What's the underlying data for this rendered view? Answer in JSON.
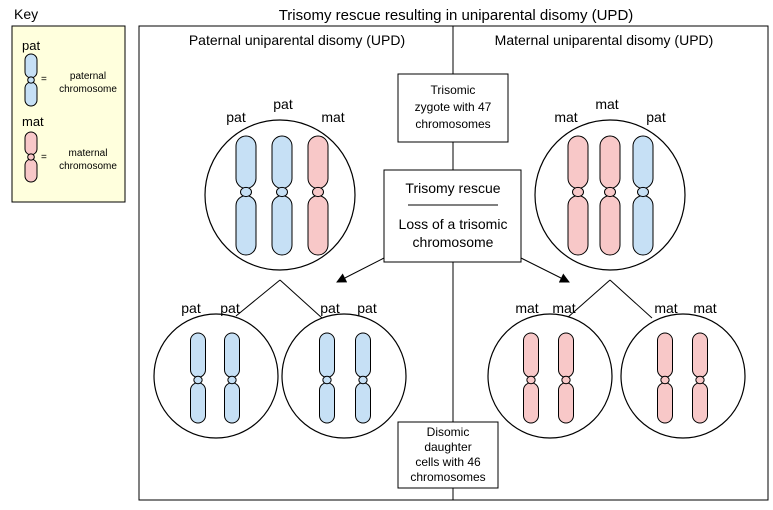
{
  "title": "Trisomy rescue resulting in uniparental disomy (UPD)",
  "key": {
    "heading": "Key",
    "pat_label": "pat",
    "pat_desc_line1": "paternal",
    "pat_desc_line2": "chromosome",
    "mat_label": "mat",
    "mat_desc_line1": "maternal",
    "mat_desc_line2": "chromosome",
    "equals": "=",
    "background": "#ffffdd"
  },
  "colors": {
    "paternal": "#c6e0f5",
    "maternal": "#f8c8c8"
  },
  "paternal_panel": {
    "heading": "Paternal uniparental disomy (UPD)",
    "zygote_labels": [
      "pat",
      "pat",
      "mat"
    ],
    "left_daughter_labels": [
      "pat",
      "pat"
    ],
    "right_daughter_labels": [
      "pat",
      "pat"
    ]
  },
  "maternal_panel": {
    "heading": "Maternal uniparental disomy (UPD)",
    "zygote_labels": [
      "mat",
      "mat",
      "pat"
    ],
    "left_daughter_labels": [
      "mat",
      "mat"
    ],
    "right_daughter_labels": [
      "mat",
      "mat"
    ]
  },
  "boxes": {
    "zygote": [
      "Trisomic",
      "zygote with 47",
      "chromosomes"
    ],
    "rescue_title": "Trisomy rescue",
    "rescue_desc": [
      "Loss of a trisomic",
      "chromosome"
    ],
    "disomic": [
      "Disomic",
      "daughter",
      "cells with 46",
      "chromosomes"
    ]
  }
}
